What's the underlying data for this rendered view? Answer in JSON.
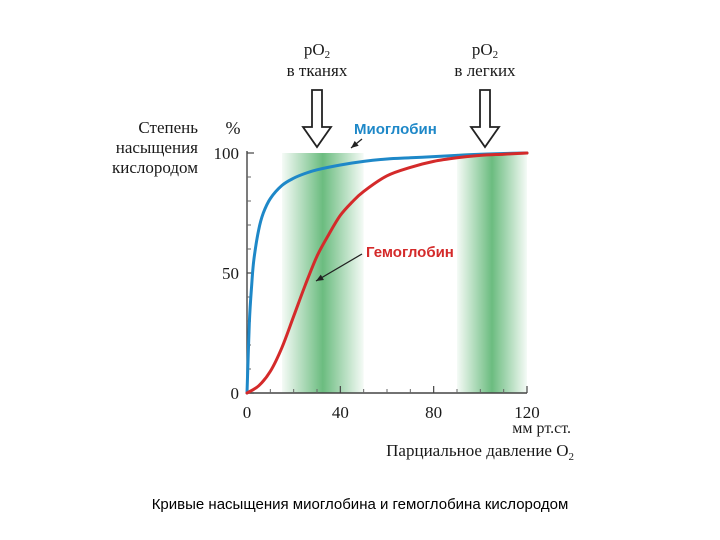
{
  "chart_data": {
    "type": "line",
    "ylabel": [
      "Степень",
      "насыщения",
      "кислородом"
    ],
    "yunit": "%",
    "xunit": "мм рт.ст.",
    "xlabel_main": "Парциальное давление O",
    "xlabel_sub": "2",
    "xlim": [
      0,
      120
    ],
    "ylim": [
      0,
      100
    ],
    "xticks": [
      0,
      40,
      80,
      120
    ],
    "yticks": [
      0,
      50,
      100
    ],
    "grid": false,
    "shaded_bands": [
      {
        "x": [
          15,
          50
        ],
        "color": "#3aa655"
      },
      {
        "x": [
          90,
          120
        ],
        "color": "#3aa655"
      }
    ],
    "arrows": [
      {
        "x": 30,
        "label_main": "pO",
        "label_sub": "2",
        "label_line2": "в тканях"
      },
      {
        "x": 102,
        "label_main": "pO",
        "label_sub": "2",
        "label_line2": "в легких"
      }
    ],
    "series": [
      {
        "name": "Миоглобин",
        "color": "#1e88c8",
        "x": [
          0,
          1,
          2,
          3,
          5,
          7,
          10,
          15,
          20,
          25,
          30,
          40,
          50,
          60,
          70,
          80,
          90,
          100,
          110,
          120
        ],
        "y": [
          0,
          29,
          45,
          56,
          68,
          75,
          81,
          86.5,
          89.5,
          91.5,
          93,
          95,
          96.5,
          97.5,
          98,
          98.5,
          99,
          99.5,
          99.8,
          100
        ]
      },
      {
        "name": "Гемоглобин",
        "color": "#d42a2a",
        "x": [
          0,
          5,
          10,
          15,
          20,
          25,
          30,
          35,
          40,
          45,
          50,
          60,
          70,
          80,
          90,
          100,
          110,
          120
        ],
        "y": [
          0,
          3,
          9,
          19,
          32,
          45,
          57,
          66,
          74,
          79.5,
          84,
          90.5,
          94,
          96.5,
          98,
          99,
          99.5,
          100
        ]
      }
    ],
    "annotations": [
      {
        "text": "Миоглобин",
        "series": 0
      },
      {
        "text": "Гемоглобин",
        "series": 1
      }
    ]
  },
  "caption": "Кривые насыщения миоглобина и гемоглобина кислородом"
}
